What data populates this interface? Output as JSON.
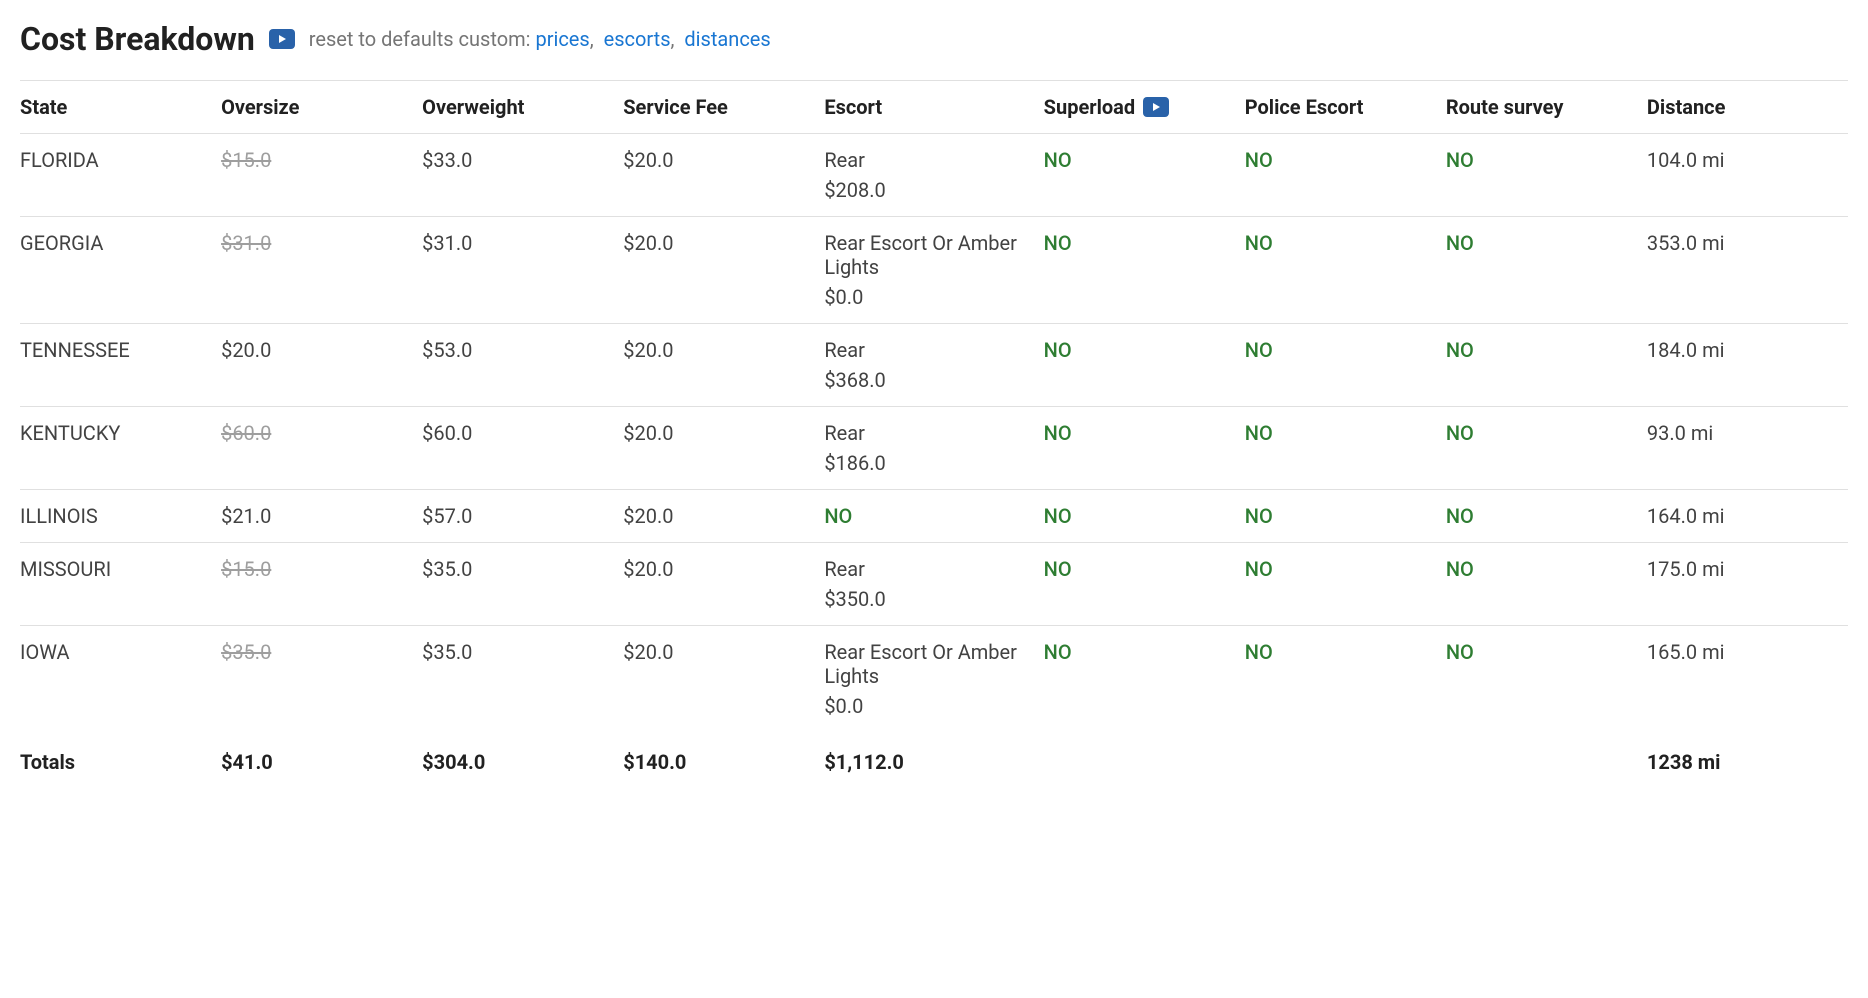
{
  "header": {
    "title": "Cost Breakdown",
    "reset_prefix": "reset to defaults custom:",
    "links": {
      "prices": "prices",
      "escorts": "escorts",
      "distances": "distances"
    }
  },
  "columns": {
    "state": "State",
    "oversize": "Oversize",
    "overweight": "Overweight",
    "service_fee": "Service Fee",
    "escort": "Escort",
    "superload": "Superload",
    "police_escort": "Police Escort",
    "route_survey": "Route survey",
    "distance": "Distance"
  },
  "rows": [
    {
      "state": "FLORIDA",
      "oversize": "$15.0",
      "oversize_struck": true,
      "overweight": "$33.0",
      "service_fee": "$20.0",
      "escort_label": "Rear",
      "escort_value": "$208.0",
      "superload": "NO",
      "police_escort": "NO",
      "route_survey": "NO",
      "distance": "104.0 mi"
    },
    {
      "state": "GEORGIA",
      "oversize": "$31.0",
      "oversize_struck": true,
      "overweight": "$31.0",
      "service_fee": "$20.0",
      "escort_label": "Rear Escort Or Amber Lights",
      "escort_value": "$0.0",
      "superload": "NO",
      "police_escort": "NO",
      "route_survey": "NO",
      "distance": "353.0 mi"
    },
    {
      "state": "TENNESSEE",
      "oversize": "$20.0",
      "oversize_struck": false,
      "overweight": "$53.0",
      "service_fee": "$20.0",
      "escort_label": "Rear",
      "escort_value": "$368.0",
      "superload": "NO",
      "police_escort": "NO",
      "route_survey": "NO",
      "distance": "184.0 mi"
    },
    {
      "state": "KENTUCKY",
      "oversize": "$60.0",
      "oversize_struck": true,
      "overweight": "$60.0",
      "service_fee": "$20.0",
      "escort_label": "Rear",
      "escort_value": "$186.0",
      "superload": "NO",
      "police_escort": "NO",
      "route_survey": "NO",
      "distance": "93.0 mi"
    },
    {
      "state": "ILLINOIS",
      "oversize": "$21.0",
      "oversize_struck": false,
      "overweight": "$57.0",
      "service_fee": "$20.0",
      "escort_label": "NO",
      "escort_value": "",
      "escort_is_no": true,
      "superload": "NO",
      "police_escort": "NO",
      "route_survey": "NO",
      "distance": "164.0 mi"
    },
    {
      "state": "MISSOURI",
      "oversize": "$15.0",
      "oversize_struck": true,
      "overweight": "$35.0",
      "service_fee": "$20.0",
      "escort_label": "Rear",
      "escort_value": "$350.0",
      "superload": "NO",
      "police_escort": "NO",
      "route_survey": "NO",
      "distance": "175.0 mi"
    },
    {
      "state": "IOWA",
      "oversize": "$35.0",
      "oversize_struck": true,
      "overweight": "$35.0",
      "service_fee": "$20.0",
      "escort_label": "Rear Escort Or Amber Lights",
      "escort_value": "$0.0",
      "superload": "NO",
      "police_escort": "NO",
      "route_survey": "NO",
      "distance": "165.0 mi"
    }
  ],
  "totals": {
    "label": "Totals",
    "oversize": "$41.0",
    "overweight": "$304.0",
    "service_fee": "$140.0",
    "escort": "$1,112.0",
    "distance": "1238 mi"
  },
  "colors": {
    "link": "#1976d2",
    "no_green": "#2e7d32",
    "strikethrough": "#9e9e9e",
    "border": "#e0e0e0",
    "badge": "#2962a9"
  }
}
